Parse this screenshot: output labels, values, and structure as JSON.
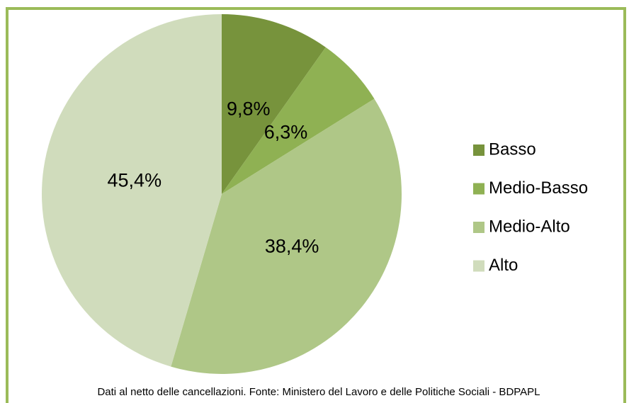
{
  "chart_data": {
    "type": "pie",
    "categories": [
      "Basso",
      "Medio-Basso",
      "Medio-Alto",
      "Alto"
    ],
    "values": [
      9.8,
      6.3,
      38.4,
      45.4
    ],
    "value_labels": [
      "9,8%",
      "6,3%",
      "38,4%",
      "45,4%"
    ],
    "colors": [
      "#77933c",
      "#8fb153",
      "#afc787",
      "#d0dcbc"
    ],
    "note": "Dati al netto delle cancellazioni. Fonte: Ministero del Lavoro e delle Politiche Sociali - BDPAPL",
    "legend": "right"
  }
}
